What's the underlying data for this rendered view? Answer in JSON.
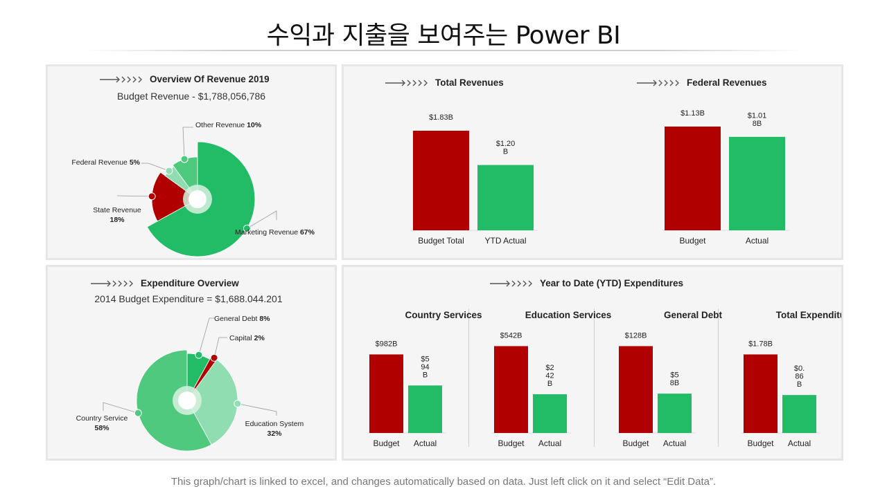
{
  "page": {
    "title": "수익과 지출을 보여주는 Power BI",
    "footer": "This graph/chart is linked to excel, and changes automatically based on data. Just left click on it and select “Edit Data”."
  },
  "colors": {
    "red": "#b00000",
    "green": "#22bb66",
    "panel_bg": "#f5f5f5"
  },
  "revenue_panel": {
    "heading": "Overview Of Revenue 2019",
    "subtitle": "Budget Revenue - $1,788,056,786"
  },
  "total_rev_panel": {
    "heading": "Total Revenues"
  },
  "federal_rev_panel": {
    "heading": "Federal Revenues"
  },
  "expenditure_panel": {
    "heading": "Expenditure Overview",
    "subtitle": "2014 Budget Expenditure = $1,688.044.201"
  },
  "ytd_panel": {
    "heading": "Year to Date (YTD) Expenditures"
  },
  "chart_data": [
    {
      "id": "revenue-pie",
      "type": "pie",
      "title": "Overview Of Revenue 2019",
      "slices": [
        {
          "label": "Marketing Revenue",
          "pct_label": "67%",
          "value": 67,
          "color": "#22bb66"
        },
        {
          "label": "State Revenue",
          "pct_label": "18%",
          "value": 18,
          "color": "#b00000"
        },
        {
          "label": "Federal Revenue",
          "pct_label": "5%",
          "value": 5,
          "color": "#8fddb0"
        },
        {
          "label": "Other Revenue",
          "pct_label": "10%",
          "value": 10,
          "color": "#4fc97e"
        }
      ]
    },
    {
      "id": "total-revenues",
      "type": "bar",
      "title": "Total Revenues",
      "categories": [
        "Budget Total",
        "YTD Actual"
      ],
      "values": [
        1.83,
        1.2
      ],
      "value_labels": [
        "$1.83B",
        "$1.20\nB"
      ],
      "colors": [
        "#b00000",
        "#22bb66"
      ]
    },
    {
      "id": "federal-revenues",
      "type": "bar",
      "title": "Federal Revenues",
      "categories": [
        "Budget",
        "Actual"
      ],
      "values": [
        1.13,
        1.018
      ],
      "value_labels": [
        "$1.13B",
        "$1.01\n8B"
      ],
      "colors": [
        "#b00000",
        "#22bb66"
      ]
    },
    {
      "id": "expenditure-pie",
      "type": "pie",
      "title": "Expenditure Overview",
      "slices": [
        {
          "label": "General Debt",
          "pct_label": "8%",
          "value": 8,
          "color": "#22bb66"
        },
        {
          "label": "Capital",
          "pct_label": "2%",
          "value": 2,
          "color": "#b00000"
        },
        {
          "label": "Education System",
          "pct_label": "32%",
          "value": 32,
          "color": "#8fddb0"
        },
        {
          "label": "Country Service",
          "pct_label": "58%",
          "value": 58,
          "color": "#4fc97e"
        }
      ]
    },
    {
      "id": "country-services",
      "type": "bar",
      "title": "Country Services",
      "categories": [
        "Budget",
        "Actual"
      ],
      "values": [
        982,
        594
      ],
      "value_labels": [
        "$982B",
        "$5\n94\nB"
      ],
      "colors": [
        "#b00000",
        "#22bb66"
      ]
    },
    {
      "id": "education-services",
      "type": "bar",
      "title": "Education Services",
      "categories": [
        "Budget",
        "Actual"
      ],
      "values": [
        542,
        242
      ],
      "value_labels": [
        "$542B",
        "$2\n42\nB"
      ],
      "colors": [
        "#b00000",
        "#22bb66"
      ]
    },
    {
      "id": "general-debt",
      "type": "bar",
      "title": "General Debt",
      "categories": [
        "Budget",
        "Actual"
      ],
      "values": [
        128,
        58
      ],
      "value_labels": [
        "$128B",
        "$5\n8B"
      ],
      "colors": [
        "#b00000",
        "#22bb66"
      ]
    },
    {
      "id": "total-expenditures",
      "type": "bar",
      "title": "Total Expenditures",
      "categories": [
        "Budget",
        "Actual"
      ],
      "values": [
        1.78,
        0.86
      ],
      "value_labels": [
        "$1.78B",
        "$0.\n86\nB"
      ],
      "colors": [
        "#b00000",
        "#22bb66"
      ]
    }
  ]
}
